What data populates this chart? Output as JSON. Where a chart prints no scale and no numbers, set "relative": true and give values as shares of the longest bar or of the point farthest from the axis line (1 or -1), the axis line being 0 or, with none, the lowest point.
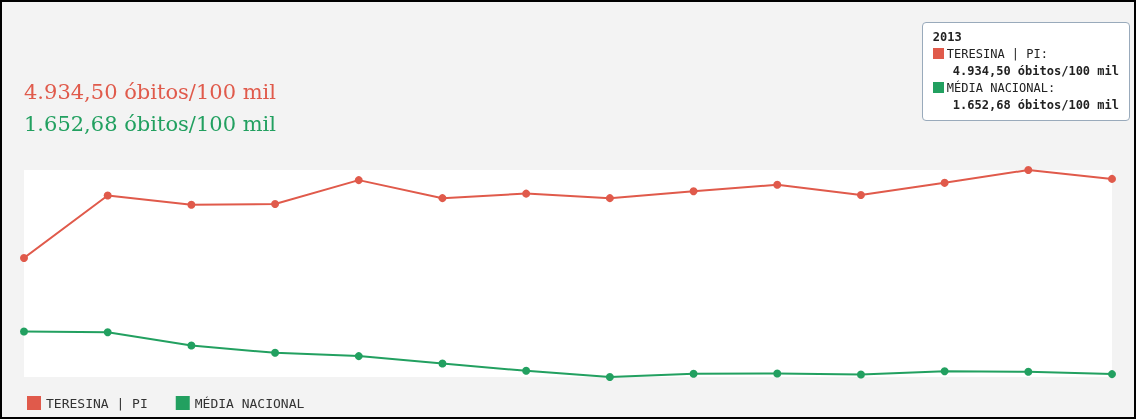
{
  "chart_data": {
    "type": "line",
    "relative": true,
    "categories": [
      null,
      null,
      null,
      null,
      null,
      null,
      null,
      null,
      null,
      null,
      null,
      null,
      null,
      null
    ],
    "series": [
      {
        "name": "TERESINA | PI",
        "color": "#e05a4b",
        "values": [
          0.575,
          0.877,
          0.832,
          0.836,
          0.951,
          0.864,
          0.886,
          0.864,
          0.897,
          0.929,
          0.879,
          0.938,
          1,
          0.957
        ]
      },
      {
        "name": "MÉDIA NACIONAL",
        "color": "#22a060",
        "values": [
          0.22,
          0.216,
          0.152,
          0.117,
          0.101,
          0.065,
          0.03,
          0,
          0.016,
          0.017,
          0.012,
          0.028,
          0.025,
          0.014
        ]
      }
    ],
    "annotations": [
      "4.934,50 óbitos/100 mil",
      "1.652,68 óbitos/100 mil",
      "2013",
      "TERESINA | PI:",
      "4.934,50 óbitos/100 mil",
      "MÉDIA NACIONAL:",
      "1.652,68 óbitos/100 mil"
    ],
    "marker": "circle",
    "grid": false,
    "legend": "bottom left"
  }
}
